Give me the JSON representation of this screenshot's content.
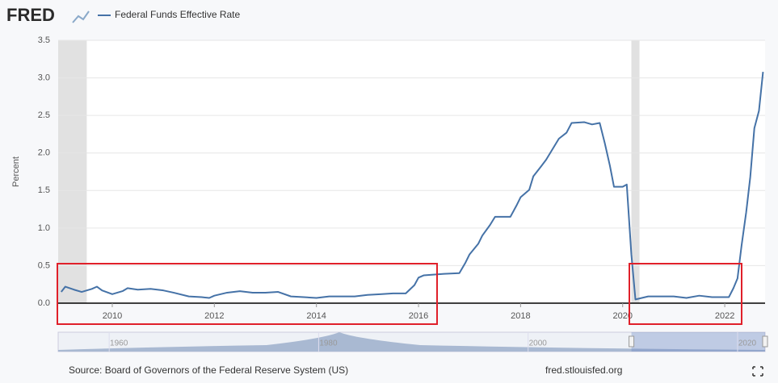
{
  "logo": "FRED",
  "chart_data": {
    "type": "line",
    "series": [
      {
        "name": "Federal Funds Effective Rate",
        "color": "#4572a7",
        "x": [
          2009.0,
          2009.08,
          2009.25,
          2009.4,
          2009.6,
          2009.7,
          2009.8,
          2010.0,
          2010.2,
          2010.3,
          2010.5,
          2010.75,
          2011.0,
          2011.2,
          2011.5,
          2011.75,
          2011.9,
          2012.0,
          2012.25,
          2012.5,
          2012.75,
          2013.0,
          2013.25,
          2013.5,
          2013.75,
          2014.0,
          2014.25,
          2014.5,
          2014.75,
          2015.0,
          2015.25,
          2015.5,
          2015.75,
          2015.92,
          2016.0,
          2016.1,
          2016.5,
          2016.8,
          2016.92,
          2017.0,
          2017.17,
          2017.25,
          2017.4,
          2017.5,
          2017.8,
          2017.92,
          2018.0,
          2018.17,
          2018.25,
          2018.4,
          2018.5,
          2018.75,
          2018.9,
          2019.0,
          2019.25,
          2019.4,
          2019.55,
          2019.65,
          2019.75,
          2019.83,
          2020.0,
          2020.08,
          2020.17,
          2020.25,
          2020.5,
          2020.75,
          2021.0,
          2021.25,
          2021.5,
          2021.75,
          2022.0,
          2022.08,
          2022.17,
          2022.25,
          2022.33,
          2022.42,
          2022.5,
          2022.58,
          2022.67,
          2022.75
        ],
        "values": [
          0.15,
          0.22,
          0.18,
          0.15,
          0.19,
          0.22,
          0.17,
          0.12,
          0.16,
          0.2,
          0.18,
          0.19,
          0.17,
          0.14,
          0.09,
          0.08,
          0.07,
          0.1,
          0.14,
          0.16,
          0.14,
          0.14,
          0.15,
          0.09,
          0.08,
          0.07,
          0.09,
          0.09,
          0.09,
          0.11,
          0.12,
          0.13,
          0.13,
          0.24,
          0.34,
          0.37,
          0.39,
          0.4,
          0.54,
          0.65,
          0.79,
          0.9,
          1.04,
          1.15,
          1.15,
          1.3,
          1.41,
          1.51,
          1.69,
          1.82,
          1.91,
          2.19,
          2.27,
          2.4,
          2.41,
          2.38,
          2.4,
          2.13,
          1.83,
          1.55,
          1.55,
          1.58,
          0.65,
          0.05,
          0.09,
          0.09,
          0.09,
          0.07,
          0.1,
          0.08,
          0.08,
          0.08,
          0.2,
          0.33,
          0.77,
          1.21,
          1.68,
          2.33,
          2.56,
          3.08
        ]
      }
    ],
    "ylabel": "Percent",
    "xlim": [
      2008.94,
      2022.79
    ],
    "xticks": [
      2010,
      2012,
      2014,
      2016,
      2018,
      2020,
      2022
    ],
    "ylim": [
      0,
      3.5
    ],
    "yticks": [
      {
        "value": 0,
        "label": "0.0"
      },
      0.5,
      {
        "value": 1,
        "label": "1.0"
      },
      1.5,
      {
        "value": 2,
        "label": "2.0"
      },
      2.5,
      {
        "value": 3,
        "label": "3.0"
      },
      3.5
    ],
    "recessions": [
      [
        2008.94,
        2009.5
      ],
      [
        2020.17,
        2020.33
      ]
    ],
    "grid": true,
    "navigator": {
      "xlim": [
        1954.2,
        2021.7
      ],
      "xticks": [
        1960,
        1980,
        2000,
        2020
      ]
    },
    "source": "Source: Board of Governors of the Federal Reserve System (US)",
    "site": "fred.stlouisfed.org"
  }
}
